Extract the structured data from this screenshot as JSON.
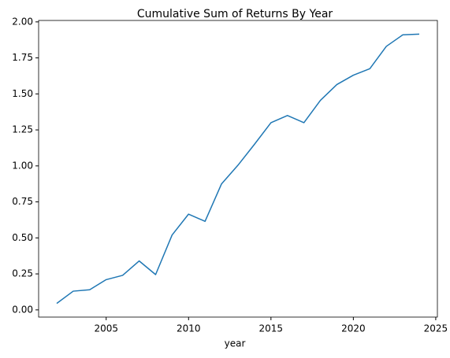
{
  "chart_data": {
    "type": "line",
    "title": "Cumulative Sum of Returns By Year",
    "x_label": "year",
    "x": [
      2002,
      2003,
      2004,
      2005,
      2006,
      2007,
      2008,
      2009,
      2010,
      2011,
      2012,
      2013,
      2014,
      2015,
      2016,
      2017,
      2018,
      2019,
      2020,
      2021,
      2022,
      2023,
      2024
    ],
    "series": [
      {
        "name": "Cumulative Sum of Returns",
        "color": "#1f77b4",
        "values": [
          0.045,
          0.13,
          0.14,
          0.21,
          0.24,
          0.34,
          0.245,
          0.52,
          0.665,
          0.615,
          0.875,
          1.005,
          1.15,
          1.3,
          1.35,
          1.3,
          1.455,
          1.565,
          1.63,
          1.675,
          1.83,
          1.91,
          1.915
        ]
      }
    ],
    "xlim": [
      2000.9,
      2025.1
    ],
    "xticks": [
      2005,
      2010,
      2015,
      2020,
      2025
    ],
    "ylim": [
      -0.05,
      2.01
    ],
    "yticks": [
      {
        "value": 0,
        "label": "0.00"
      },
      {
        "value": 0.25,
        "label": "0.25"
      },
      {
        "value": 0.5,
        "label": "0.50"
      },
      {
        "value": 0.75,
        "label": "0.75"
      },
      {
        "value": 1,
        "label": "1.00"
      },
      {
        "value": 1.25,
        "label": "1.25"
      },
      {
        "value": 1.5,
        "label": "1.50"
      },
      {
        "value": 1.75,
        "label": "1.75"
      },
      {
        "value": 2,
        "label": "2.00"
      }
    ],
    "grid": false
  }
}
